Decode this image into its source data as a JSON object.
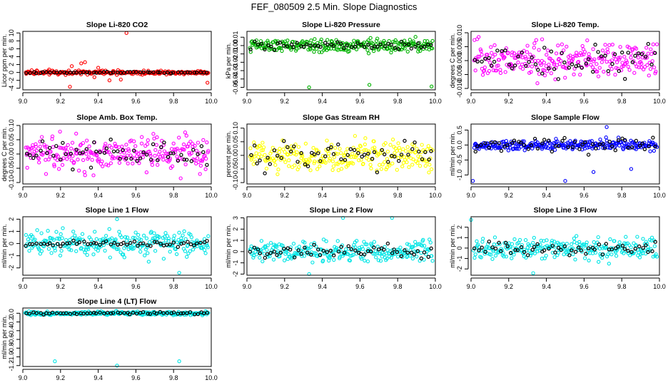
{
  "page": {
    "title": "FEF_080509  2.5 Min. Slope Diagnostics"
  },
  "chart_data": [
    {
      "type": "scatter",
      "title": "Slope Li-820 CO2",
      "ylabel": "Licor ppm per min.",
      "xlim": [
        9.0,
        10.0
      ],
      "ylim": [
        -4.4,
        10.4
      ],
      "xticks": [
        9.0,
        9.2,
        9.4,
        9.6,
        9.8,
        10.0
      ],
      "xtick_labels": [
        "9.0",
        "9.2",
        "9.4",
        "9.6",
        "9.8",
        "10.0"
      ],
      "yticks": [
        -4,
        -2,
        0,
        2,
        4,
        6,
        8,
        10
      ],
      "ytick_labels": [
        "-4",
        "-2",
        "0",
        "2",
        "4",
        "6",
        "8",
        "10"
      ],
      "color": "#ff0000",
      "spread": 0.35,
      "black_spread": 0.12,
      "outliers": [
        [
          9.55,
          10.0
        ],
        [
          9.31,
          2.3
        ],
        [
          9.33,
          2.6
        ],
        [
          9.26,
          1.6
        ],
        [
          9.38,
          -1.2
        ],
        [
          9.46,
          -2.0
        ],
        [
          9.52,
          -1.8
        ],
        [
          9.25,
          -3.6
        ],
        [
          9.98,
          -2.6
        ],
        [
          9.4,
          1.2
        ]
      ]
    },
    {
      "type": "scatter",
      "title": "Slope Li-820 Pressure",
      "ylabel": "kPa per min.",
      "xlim": [
        9.0,
        10.0
      ],
      "ylim": [
        -0.053,
        0.017
      ],
      "xticks": [
        9.0,
        9.2,
        9.4,
        9.6,
        9.8,
        10.0
      ],
      "xtick_labels": [
        "9.0",
        "9.2",
        "9.4",
        "9.6",
        "9.8",
        "10.0"
      ],
      "yticks": [
        -0.05,
        -0.04,
        -0.03,
        -0.02,
        -0.01,
        0.0,
        0.01
      ],
      "ytick_labels": [
        "-0.05",
        "-0.04",
        "-0.03",
        "-0.02",
        "-0.01",
        "0.00",
        "0.01"
      ],
      "color": "#00b300",
      "spread": 0.005,
      "black_spread": 0.004,
      "outliers": [
        [
          9.33,
          -0.05
        ],
        [
          9.65,
          -0.047
        ],
        [
          9.98,
          -0.049
        ]
      ]
    },
    {
      "type": "scatter",
      "title": "Slope Li-820 Temp.",
      "ylabel": "degrees C per min.",
      "xlim": [
        9.0,
        10.0
      ],
      "ylim": [
        -0.0105,
        0.0105
      ],
      "xticks": [
        9.0,
        9.2,
        9.4,
        9.6,
        9.8,
        10.0
      ],
      "xtick_labels": [
        "9.0",
        "9.2",
        "9.4",
        "9.6",
        "9.8",
        "10.0"
      ],
      "yticks": [
        -0.01,
        -0.005,
        0.0,
        0.005,
        0.01
      ],
      "ytick_labels": [
        "-0.010",
        "-0.005",
        "0.000",
        "0.005",
        "0.010"
      ],
      "color": "#ff00ff",
      "spread": 0.0045,
      "black_spread": 0.004,
      "outliers": []
    },
    {
      "type": "scatter",
      "title": "Slope Amb. Box Temp.",
      "ylabel": "degrees C per min.",
      "xlim": [
        9.0,
        10.0
      ],
      "ylim": [
        -0.105,
        0.105
      ],
      "xticks": [
        9.0,
        9.2,
        9.4,
        9.6,
        9.8,
        10.0
      ],
      "xtick_labels": [
        "9.0",
        "9.2",
        "9.4",
        "9.6",
        "9.8",
        "10.0"
      ],
      "yticks": [
        -0.1,
        -0.05,
        0.0,
        0.05,
        0.1
      ],
      "ytick_labels": [
        "-0.10",
        "-0.05",
        "0.00",
        "0.05",
        "0.10"
      ],
      "color": "#ff00ff",
      "spread": 0.04,
      "black_spread": 0.03,
      "outliers": []
    },
    {
      "type": "scatter",
      "title": "Slope Gas Stream RH",
      "ylabel": "percent per min.",
      "xlim": [
        9.0,
        10.0
      ],
      "ylim": [
        -0.105,
        0.115
      ],
      "xticks": [
        9.0,
        9.2,
        9.4,
        9.6,
        9.8,
        10.0
      ],
      "xtick_labels": [
        "9.0",
        "9.2",
        "9.4",
        "9.6",
        "9.8",
        "10.0"
      ],
      "yticks": [
        -0.1,
        -0.05,
        0.0,
        0.05,
        0.1
      ],
      "ytick_labels": [
        "-0.10",
        "-0.05",
        "0.00",
        "0.05",
        "0.10"
      ],
      "color": "#ffff00",
      "spread": 0.04,
      "black_spread": 0.035,
      "outliers": []
    },
    {
      "type": "scatter",
      "title": "Slope Sample Flow",
      "ylabel": "ml/min per min.",
      "xlim": [
        9.0,
        10.0
      ],
      "ylim": [
        -1.3,
        0.7
      ],
      "xticks": [
        9.0,
        9.2,
        9.4,
        9.6,
        9.8,
        10.0
      ],
      "xtick_labels": [
        "9.0",
        "9.2",
        "9.4",
        "9.6",
        "9.8",
        "10.0"
      ],
      "yticks": [
        -1.0,
        -0.5,
        0.0,
        0.5
      ],
      "ytick_labels": [
        "-1.0",
        "-0.5",
        "0.0",
        "0.5"
      ],
      "color": "#0000ff",
      "spread": 0.12,
      "black_spread": 0.18,
      "outliers": [
        [
          9.01,
          -1.2
        ],
        [
          9.5,
          -1.2
        ],
        [
          9.65,
          -0.9
        ],
        [
          9.72,
          0.6
        ],
        [
          9.85,
          -0.8
        ]
      ]
    },
    {
      "type": "scatter",
      "title": "Slope Line 1 Flow",
      "ylabel": "ml/min per min.",
      "xlim": [
        9.0,
        10.0
      ],
      "ylim": [
        -2.6,
        2.2
      ],
      "xticks": [
        9.0,
        9.2,
        9.4,
        9.6,
        9.8,
        10.0
      ],
      "xtick_labels": [
        "9.0",
        "9.2",
        "9.4",
        "9.6",
        "9.8",
        "10.0"
      ],
      "yticks": [
        -2,
        -1,
        0,
        1,
        2
      ],
      "ytick_labels": [
        "-2",
        "-1",
        "0",
        "1",
        "2"
      ],
      "color": "#00e5e5",
      "spread": 0.7,
      "black_spread": 0.15,
      "outliers": [
        [
          9.5,
          2.0
        ],
        [
          9.83,
          -2.4
        ]
      ]
    },
    {
      "type": "scatter",
      "title": "Slope Line 2 Flow",
      "ylabel": "ml/min per min.",
      "xlim": [
        9.0,
        10.0
      ],
      "ylim": [
        -2.1,
        3.1
      ],
      "xticks": [
        9.0,
        9.2,
        9.4,
        9.6,
        9.8,
        10.0
      ],
      "xtick_labels": [
        "9.0",
        "9.2",
        "9.4",
        "9.6",
        "9.8",
        "10.0"
      ],
      "yticks": [
        -2,
        -1,
        0,
        1,
        2,
        3
      ],
      "ytick_labels": [
        "-2",
        "-1",
        "0",
        "1",
        "2",
        "3"
      ],
      "color": "#00e5e5",
      "spread": 0.6,
      "black_spread": 0.4,
      "outliers": [
        [
          9.51,
          3.0
        ],
        [
          9.77,
          3.0
        ],
        [
          9.33,
          -2.0
        ]
      ]
    },
    {
      "type": "scatter",
      "title": "Slope Line 3 Flow",
      "ylabel": "ml/min per min.",
      "xlim": [
        9.0,
        10.0
      ],
      "ylim": [
        -2.6,
        3.0
      ],
      "xticks": [
        9.0,
        9.2,
        9.4,
        9.6,
        9.8,
        10.0
      ],
      "xtick_labels": [
        "9.0",
        "9.2",
        "9.4",
        "9.6",
        "9.8",
        "10.0"
      ],
      "yticks": [
        -2,
        -1,
        0,
        1,
        2
      ],
      "ytick_labels": [
        "-2",
        "-1",
        "0",
        "1",
        "2"
      ],
      "color": "#00e5e5",
      "spread": 0.7,
      "black_spread": 0.5,
      "outliers": [
        [
          9.33,
          -2.4
        ],
        [
          9.0,
          2.7
        ]
      ]
    },
    {
      "type": "scatter",
      "title": "Slope Line 4 (LT) Flow",
      "ylabel": "ml/min per min.",
      "xlim": [
        9.0,
        10.0
      ],
      "ylim": [
        -1.22,
        0.12
      ],
      "xticks": [
        9.0,
        9.2,
        9.4,
        9.6,
        9.8,
        10.0
      ],
      "xtick_labels": [
        "9.0",
        "9.2",
        "9.4",
        "9.6",
        "9.8",
        "10.0"
      ],
      "yticks": [
        -1.2,
        -1.0,
        -0.8,
        -0.6,
        -0.4,
        -0.2,
        0.0
      ],
      "ytick_labels": [
        "-1.2",
        "-1.0",
        "-0.8",
        "-0.6",
        "-0.4",
        "-0.2",
        "0.0"
      ],
      "color": "#00e5e5",
      "spread": 0.03,
      "black_spread": 0.02,
      "outliers": [
        [
          9.17,
          -1.1
        ],
        [
          9.5,
          -1.2
        ],
        [
          9.83,
          -1.1
        ]
      ]
    }
  ]
}
